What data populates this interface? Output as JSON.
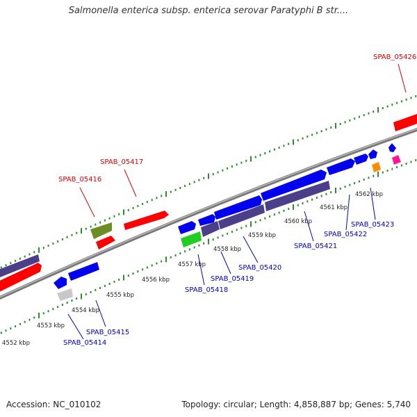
{
  "title": "Salmonella enterica subsp. enterica serovar Paratyphi B str....",
  "footer": {
    "accession": "Accession: NC_010102",
    "summary": "Topology: circular; Length: 4,858,887 bp; Genes: 5,740"
  },
  "colors": {
    "backbone": "#8a8a8a",
    "tick": "#2e8b2e",
    "label_red": "#d40000",
    "label_blue": "#0000c0",
    "scale_text": "#222222",
    "feature_red": "#ff0000",
    "feature_blue": "#0000ee",
    "feature_purple": "#4b3f8a",
    "feature_olive": "#6b8e23",
    "feature_green": "#22cc22",
    "feature_gray": "#c8c8c8",
    "feature_orange": "#ff8c00",
    "feature_pink": "#ff1493"
  },
  "scale_labels": [
    "4552 kbp",
    "4553 kbp",
    "4554 kbp",
    "4555 kbp",
    "4556 kbp",
    "4557 kbp",
    "4558 kbp",
    "4559 kbp",
    "4560 kbp",
    "4561 kbp",
    "4562 kbp"
  ],
  "gene_labels": {
    "top": [
      "SPAB_05416",
      "SPAB_05417",
      "SPAB_05426"
    ],
    "bottom": [
      "SPAB_05414",
      "SPAB_05415",
      "SPAB_05418",
      "SPAB_05419",
      "SPAB_05420",
      "SPAB_05421",
      "SPAB_05422",
      "SPAB_05423"
    ]
  }
}
